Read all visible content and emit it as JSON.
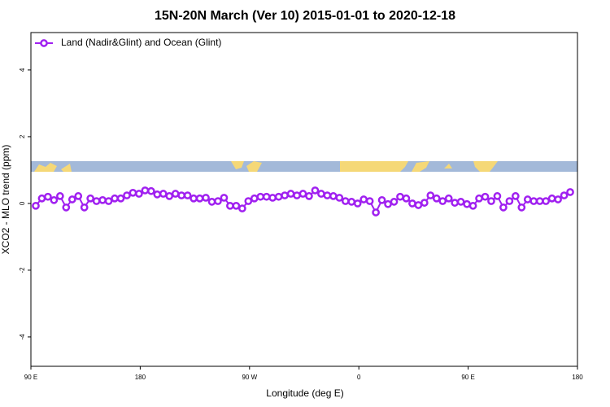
{
  "chart_data": {
    "type": "line",
    "title": "15N-20N March (Ver 10)   2015-01-01 to 2020-12-18",
    "xlabel": "Longitude (deg E)",
    "ylabel": "XCO2 - MLO trend (ppm)",
    "xlim": [
      90,
      540
    ],
    "ylim": [
      -4.88,
      5.12
    ],
    "xticks": [
      {
        "value": 90,
        "label": "90 E"
      },
      {
        "value": 180,
        "label": "180"
      },
      {
        "value": 270,
        "label": "90 W"
      },
      {
        "value": 360,
        "label": "0"
      },
      {
        "value": 450,
        "label": "90 E"
      },
      {
        "value": 540,
        "label": "180"
      }
    ],
    "yticks": [
      -4,
      -2,
      0,
      2,
      4
    ],
    "legend": "upper left",
    "x": [
      94,
      99,
      104,
      109,
      114,
      119,
      124,
      129,
      134,
      139,
      144,
      149,
      154,
      159,
      164,
      169,
      174,
      179,
      184,
      189,
      194,
      199,
      204,
      209,
      214,
      219,
      224,
      229,
      234,
      239,
      244,
      249,
      254,
      259,
      264,
      269,
      274,
      279,
      284,
      289,
      294,
      299,
      304,
      309,
      314,
      319,
      324,
      329,
      334,
      339,
      344,
      349,
      354,
      359,
      364,
      369,
      374,
      379,
      384,
      389,
      394,
      399,
      404,
      409,
      414,
      419,
      424,
      429,
      434,
      439,
      444,
      449,
      454,
      459,
      464,
      469,
      474,
      479,
      484,
      489,
      494,
      499,
      504,
      509,
      514,
      519,
      524,
      529,
      534
    ],
    "series": [
      {
        "name": "Land (Nadir&Glint) and Ocean (Glint)",
        "color": "#a020f0",
        "values": [
          -0.07,
          0.15,
          0.2,
          0.1,
          0.22,
          -0.12,
          0.12,
          0.22,
          -0.12,
          0.15,
          0.07,
          0.1,
          0.07,
          0.15,
          0.15,
          0.24,
          0.32,
          0.29,
          0.39,
          0.37,
          0.27,
          0.29,
          0.22,
          0.29,
          0.24,
          0.24,
          0.15,
          0.15,
          0.17,
          0.05,
          0.07,
          0.17,
          -0.07,
          -0.07,
          -0.15,
          0.07,
          0.15,
          0.2,
          0.2,
          0.17,
          0.2,
          0.24,
          0.29,
          0.24,
          0.29,
          0.22,
          0.39,
          0.29,
          0.24,
          0.22,
          0.17,
          0.07,
          0.05,
          0,
          0.12,
          0.07,
          -0.27,
          0.1,
          -0.02,
          0.05,
          0.2,
          0.15,
          0,
          -0.05,
          0.02,
          0.24,
          0.15,
          0.07,
          0.15,
          0.02,
          0.05,
          -0.02,
          -0.07,
          0.15,
          0.2,
          0.07,
          0.22,
          -0.12,
          0.07,
          0.22,
          -0.12,
          0.12,
          0.07,
          0.07,
          0.07,
          0.15,
          0.12,
          0.24,
          0.34
        ]
      }
    ]
  }
}
